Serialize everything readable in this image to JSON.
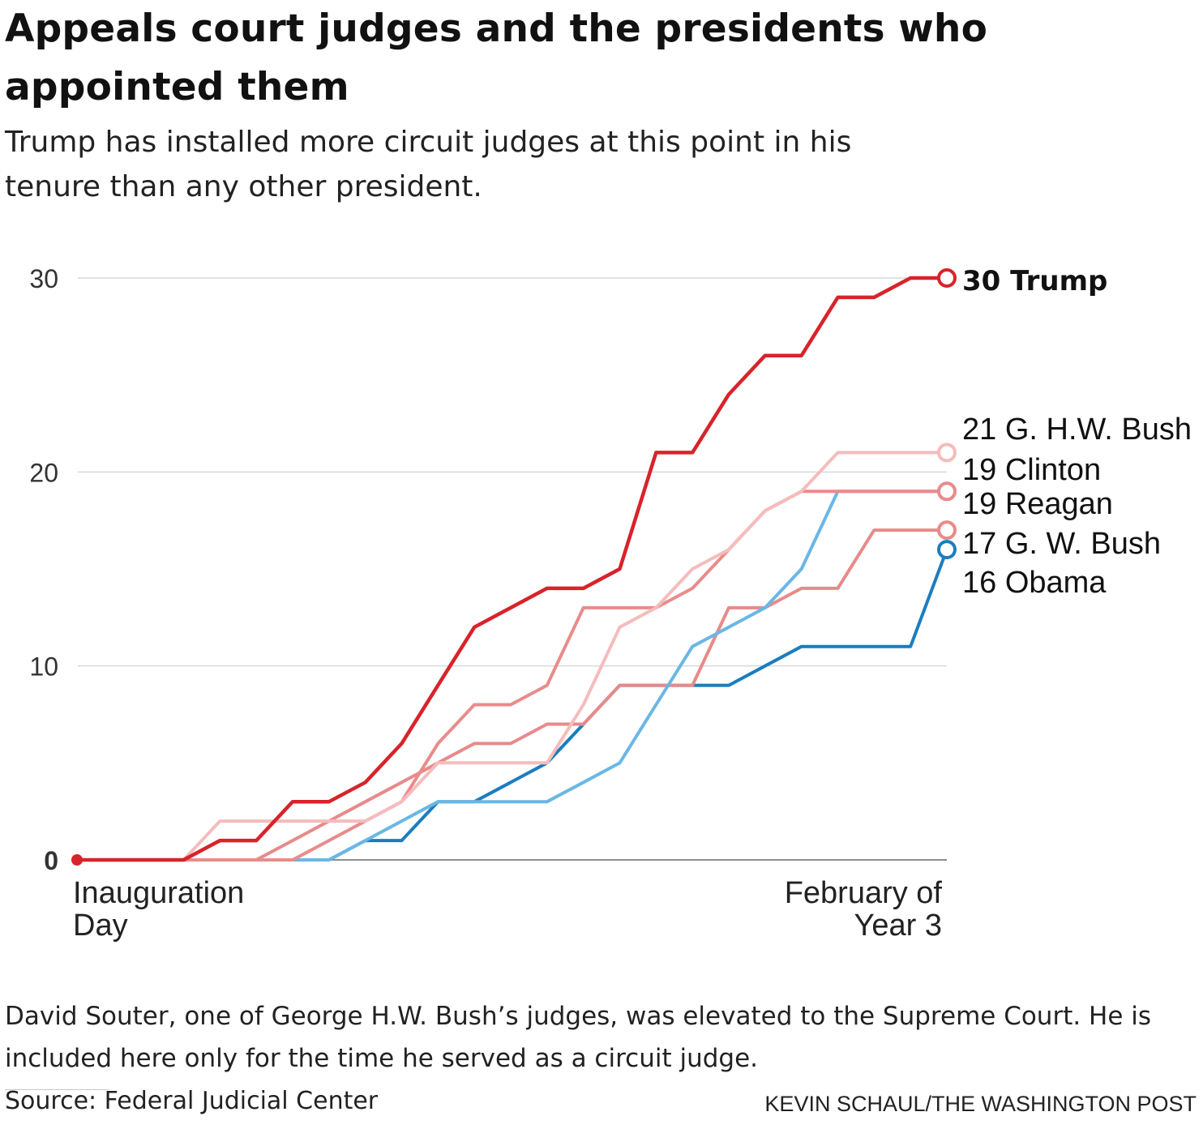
{
  "header": {
    "title": "Appeals court judges and the presidents who appointed them",
    "subtitle": "Trump has installed more circuit judges at this point in his tenure than any other president."
  },
  "footer": {
    "note": "David Souter, one of George H.W. Bush’s judges, was elevated to the Supreme Court. He is included here only for the time he served as a circuit judge.",
    "source": "Source: Federal Judicial Center",
    "credit": "KEVIN SCHAUL/THE WASHINGTON POST"
  },
  "chart_data": {
    "type": "line",
    "title": "Appeals court judges and the presidents who appointed them",
    "subtitle": "Trump has installed more circuit judges at this point in his tenure than any other president.",
    "xlabel": "",
    "ylabel": "",
    "x_tick_labels": [
      {
        "text": "Inauguration Day",
        "lines": [
          "Inauguration",
          "Day"
        ],
        "at": "start"
      },
      {
        "text": "February of Year 3",
        "lines": [
          "February of",
          "Year 3"
        ],
        "at": "end"
      }
    ],
    "x": [
      0,
      1,
      2,
      3,
      4,
      5,
      6,
      7,
      8,
      9,
      10,
      11,
      12,
      13,
      14,
      15,
      16,
      17,
      18,
      19,
      20,
      21,
      22,
      23,
      24
    ],
    "yticks": [
      0,
      10,
      20,
      30
    ],
    "ylim": [
      0,
      30
    ],
    "grid": true,
    "series": [
      {
        "name": "Trump",
        "final": 30,
        "label": "30 Trump",
        "color": "#d8232a",
        "emphasis": true,
        "values": [
          0,
          0,
          0,
          0,
          1,
          1,
          3,
          3,
          4,
          6,
          9,
          12,
          13,
          14,
          14,
          15,
          21,
          21,
          24,
          26,
          26,
          29,
          29,
          30,
          30
        ]
      },
      {
        "name": "G. H.W. Bush",
        "final": 21,
        "label": "21 G. H.W. Bush",
        "color": "#f5bcbc",
        "values": [
          0,
          0,
          0,
          0,
          2,
          2,
          2,
          2,
          2,
          3,
          5,
          5,
          5,
          5,
          8,
          12,
          13,
          15,
          16,
          18,
          19,
          21,
          21,
          21,
          21
        ]
      },
      {
        "name": "Clinton",
        "final": 19,
        "label": "19 Clinton",
        "color": "#ea8b8b",
        "values": [
          0,
          0,
          0,
          0,
          0,
          0,
          0,
          1,
          2,
          3,
          6,
          8,
          8,
          9,
          13,
          13,
          13,
          14,
          16,
          18,
          19,
          19,
          19,
          19,
          19
        ]
      },
      {
        "name": "Reagan",
        "final": 19,
        "label": "19 Reagan",
        "color": "#6ab7e5",
        "values": [
          0,
          0,
          0,
          0,
          0,
          0,
          0,
          0,
          1,
          2,
          3,
          3,
          3,
          3,
          4,
          5,
          8,
          11,
          12,
          13,
          15,
          19,
          19,
          19,
          19
        ]
      },
      {
        "name": "G. W. Bush",
        "final": 17,
        "label": "17 G. W. Bush",
        "color": "#e88a8a",
        "values": [
          0,
          0,
          0,
          0,
          0,
          0,
          1,
          2,
          3,
          4,
          5,
          6,
          6,
          7,
          7,
          9,
          9,
          9,
          13,
          13,
          14,
          14,
          17,
          17,
          17
        ]
      },
      {
        "name": "Obama",
        "final": 16,
        "label": "16 Obama",
        "color": "#1b7dbf",
        "values": [
          0,
          0,
          0,
          0,
          0,
          0,
          0,
          0,
          1,
          1,
          3,
          3,
          4,
          5,
          7,
          9,
          9,
          9,
          9,
          10,
          11,
          11,
          11,
          11,
          16
        ]
      }
    ]
  }
}
